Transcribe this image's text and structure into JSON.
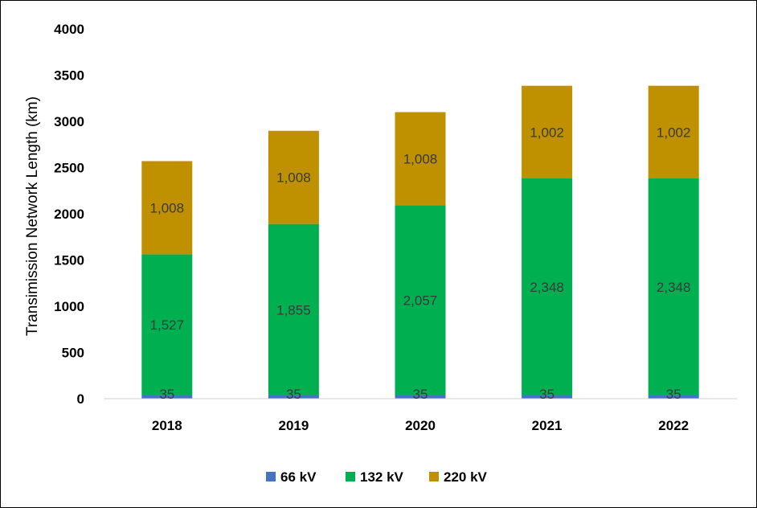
{
  "chart_data": {
    "type": "bar",
    "stacked": true,
    "categories": [
      "2018",
      "2019",
      "2020",
      "2021",
      "2022"
    ],
    "series": [
      {
        "name": "66 kV",
        "color": "#4472C4",
        "values": [
          35,
          35,
          35,
          35,
          35
        ],
        "labels": [
          "35",
          "35",
          "35",
          "35",
          "35"
        ]
      },
      {
        "name": "132 kV",
        "color": "#00B050",
        "values": [
          1527,
          1855,
          2057,
          2348,
          2348
        ],
        "labels": [
          "1,527",
          "1,855",
          "2,057",
          "2,348",
          "2,348"
        ]
      },
      {
        "name": "220 kV",
        "color": "#BF9000",
        "values": [
          1008,
          1008,
          1008,
          1002,
          1002
        ],
        "labels": [
          "1,008",
          "1,008",
          "1,008",
          "1,002",
          "1,002"
        ]
      }
    ],
    "title": "",
    "xlabel": "",
    "ylabel": "Transimission Network Length (km)",
    "ylim": [
      0,
      4000
    ],
    "yticks": [
      "0",
      "500",
      "1000",
      "1500",
      "2000",
      "2500",
      "3000",
      "3500",
      "4000"
    ],
    "grid": false,
    "legend_position": "bottom"
  }
}
